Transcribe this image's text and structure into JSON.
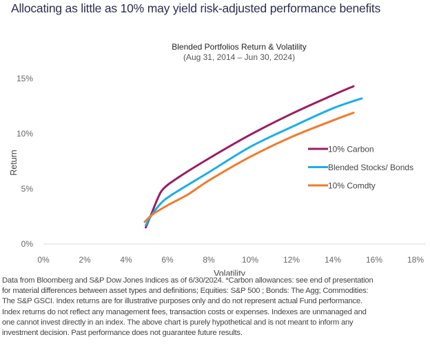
{
  "headline": "Allocating as little as 10% may yield risk-adjusted performance benefits",
  "chart_data": {
    "type": "line",
    "title": "Blended Portfolios Return & Volatility",
    "subtitle": "(Aug 31, 2014 – Jun 30, 2024)",
    "xlabel": "Volatility",
    "ylabel": "Return",
    "xlim": [
      0,
      18
    ],
    "ylim": [
      0,
      15
    ],
    "xticks": [
      "0%",
      "2%",
      "4%",
      "6%",
      "8%",
      "10%",
      "12%",
      "14%",
      "16%",
      "18%"
    ],
    "yticks": [
      "0%",
      "5%",
      "10%",
      "15%"
    ],
    "legend_position": "right",
    "series": [
      {
        "name": "10% Carbon",
        "color": "#9b1b62",
        "points": [
          [
            4.95,
            1.5
          ],
          [
            5.2,
            2.6
          ],
          [
            5.5,
            4.0
          ],
          [
            5.8,
            5.0
          ],
          [
            6.5,
            6.0
          ],
          [
            8,
            7.75
          ],
          [
            10,
            9.9
          ],
          [
            12,
            11.8
          ],
          [
            14,
            13.5
          ],
          [
            15,
            14.3
          ]
        ]
      },
      {
        "name": "Blended Stocks/ Bonds",
        "color": "#1aaeea",
        "points": [
          [
            4.95,
            1.7
          ],
          [
            5.3,
            2.8
          ],
          [
            5.8,
            3.9
          ],
          [
            6.5,
            4.8
          ],
          [
            8,
            6.5
          ],
          [
            10,
            8.8
          ],
          [
            12,
            10.6
          ],
          [
            14,
            12.3
          ],
          [
            15.4,
            13.2
          ]
        ]
      },
      {
        "name": "10% Comdty",
        "color": "#f07a2a",
        "points": [
          [
            4.9,
            2.0
          ],
          [
            5.3,
            2.7
          ],
          [
            6,
            3.5
          ],
          [
            7,
            4.5
          ],
          [
            8,
            5.75
          ],
          [
            10,
            7.9
          ],
          [
            12,
            9.7
          ],
          [
            14,
            11.2
          ],
          [
            15,
            11.9
          ]
        ]
      }
    ]
  },
  "footnote": [
    "Data from Bloomberg and S&P Dow Jones Indices as of 6/30/2024. *Carbon allowances: see end of presentation",
    "for material differences between asset types and definitions; Equities: S&P 500 ; Bonds: The Agg; Commodities:",
    "The S&P GSCI. Index returns are for illustrative purposes only and do not represent actual Fund performance.",
    "Index returns do not reflect any management fees, transaction costs or expenses. Indexes are unmanaged and",
    "one cannot invest directly in an index. The above chart is purely hypothetical and is not meant to inform any",
    "investment decision. Past performance does not guarantee future results."
  ]
}
